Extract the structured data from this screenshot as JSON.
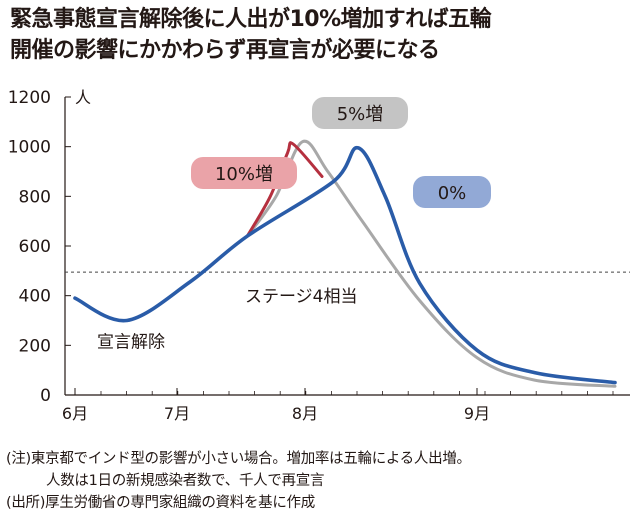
{
  "title": {
    "line1": "緊急事態宣言解除後に人出が10%増加すれば五輪",
    "line2": "開催の影響にかかわらず再宣言が必要になる"
  },
  "chart_data": {
    "type": "line",
    "ylabel": "人",
    "ylim": [
      0,
      1200
    ],
    "yticks": [
      0,
      200,
      400,
      600,
      800,
      1000,
      1200
    ],
    "x_month_labels": [
      "6月",
      "7月",
      "8月",
      "9月"
    ],
    "grid": false,
    "series": [
      {
        "name": "0%",
        "color": "#2a5ca8",
        "x": [
          0,
          0.9,
          2,
          3,
          4.5,
          4.93,
          5.4,
          6,
          7,
          8,
          9.4
        ],
        "y": [
          390,
          300,
          455,
          640,
          860,
          995,
          800,
          450,
          180,
          90,
          50
        ]
      },
      {
        "name": "5%増",
        "color": "#a8a8a8",
        "x": [
          3,
          3.5,
          3.96,
          4.4,
          5,
          6,
          7,
          8,
          9.4
        ],
        "y": [
          640,
          800,
          1020,
          900,
          700,
          380,
          150,
          60,
          35
        ]
      },
      {
        "name": "10%増",
        "color": "#b5303f",
        "x": [
          3,
          3.4,
          3.7,
          3.8,
          4.3
        ],
        "y": [
          640,
          800,
          975,
          1010,
          880
        ]
      }
    ],
    "reference_line": {
      "value": 495,
      "label": "ステージ4相当"
    },
    "annotations": [
      {
        "text": "宣言解除"
      }
    ],
    "badges": [
      {
        "text": "5%増",
        "bg": "#c4c4c4"
      },
      {
        "text": "10%増",
        "bg": "#eaa3a8"
      },
      {
        "text": "0%",
        "bg": "#92a9d6"
      }
    ]
  },
  "notes": [
    "(注)東京都でインド型の影響が小さい場合。増加率は五輪による人出増。",
    "人数は1日の新規感染者数で、千人で再宣言",
    "(出所)厚生労働省の専門家組織の資料を基に作成"
  ]
}
